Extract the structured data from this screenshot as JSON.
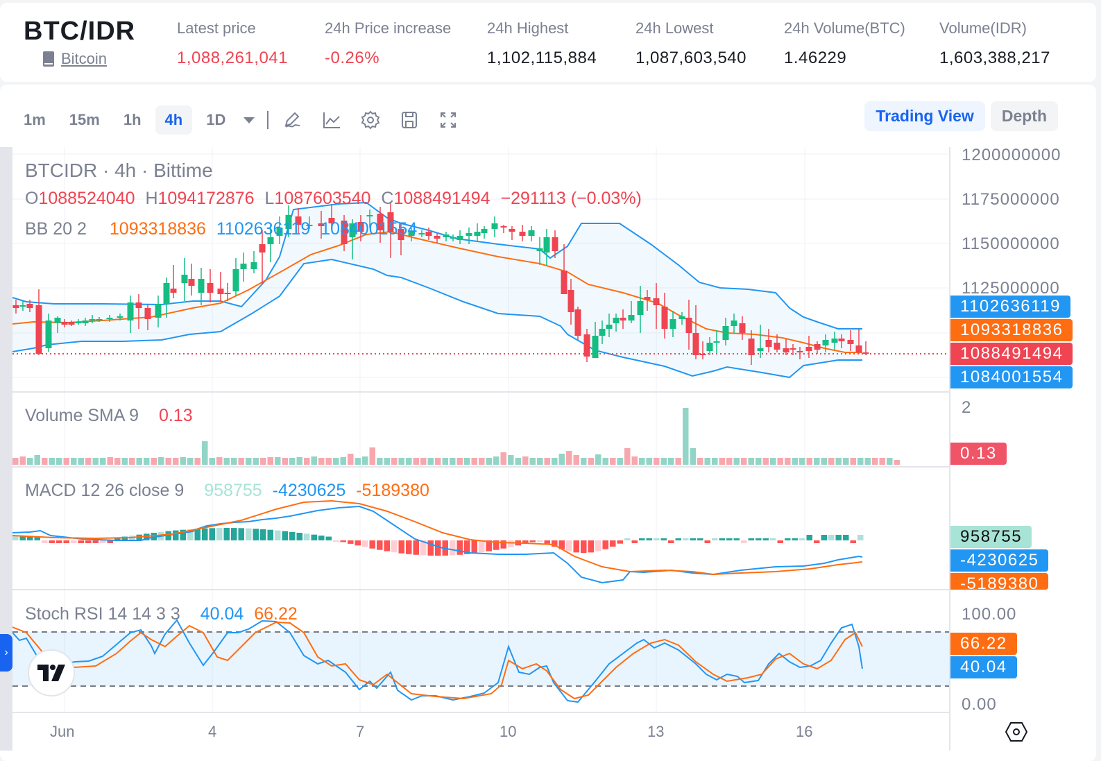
{
  "ticker": {
    "pair": "BTC/IDR",
    "coin_name": "Bitcoin",
    "stats": [
      {
        "label": "Latest price",
        "value": "1,088,261,041",
        "color": "red"
      },
      {
        "label": "24h Price increase",
        "value": "-0.26%",
        "color": "red"
      },
      {
        "label": "24h Highest",
        "value": "1,102,115,884",
        "color": "dark"
      },
      {
        "label": "24h Lowest",
        "value": "1,087,603,540",
        "color": "dark"
      },
      {
        "label": "24h Volume(BTC)",
        "value": "1.46229",
        "color": "dark"
      },
      {
        "label": "Volume(IDR)",
        "value": "1,603,388,217",
        "color": "dark"
      }
    ]
  },
  "toolbar": {
    "timeframes": [
      "1m",
      "15m",
      "1h",
      "4h",
      "1D"
    ],
    "active_timeframe": "4h",
    "icons": [
      "pencil-icon",
      "indicator-chart-icon",
      "gear-icon",
      "save-icon",
      "fullscreen-icon"
    ],
    "views": {
      "trading_view": "Trading View",
      "depth": "Depth"
    },
    "active_view": "Trading View"
  },
  "chart": {
    "title": "BTCIDR · 4h · Bittime",
    "ohlc": {
      "o_label": "O",
      "o": "1088524040",
      "h_label": "H",
      "h": "1094172876",
      "l_label": "L",
      "l": "1087603540",
      "c_label": "C",
      "c": "1088491494",
      "change": "−291113 (−0.03%)"
    },
    "bb": {
      "label": "BB 20 2",
      "basis": "1093318836",
      "upper": "1102636119",
      "lower": "1084001554"
    },
    "price_axis": [
      "1200000000",
      "1175000000",
      "1150000000",
      "1125000000"
    ],
    "price_tags": {
      "upper": "1102636119",
      "basis": "1093318836",
      "last": "1088491494",
      "lower": "1084001554"
    },
    "volume": {
      "label": "Volume SMA 9",
      "value": "0.13",
      "axis_max": "2",
      "tag": "0.13"
    },
    "macd": {
      "label": "MACD 12 26 close 9",
      "hist": "958755",
      "macd": "-4230625",
      "signal": "-5189380"
    },
    "stoch": {
      "label": "Stoch RSI 14 14 3 3",
      "k": "40.04",
      "d": "66.22",
      "axis_top": "100.00",
      "axis_bottom": "0.00"
    },
    "x_axis": [
      "Jun",
      "4",
      "7",
      "10",
      "13",
      "16"
    ],
    "colors": {
      "up": "#16bd82",
      "down": "#ef4452",
      "bb_band": "#2196f3",
      "bb_basis": "#ff6d12",
      "last_price": "#ef4452"
    }
  }
}
